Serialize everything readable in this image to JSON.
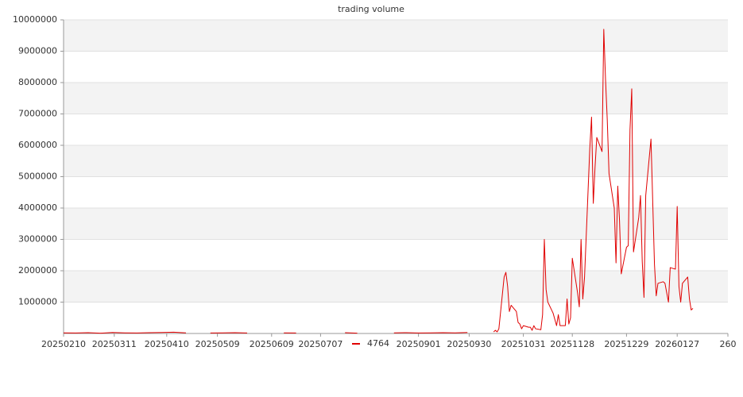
{
  "chart_data": {
    "type": "line",
    "title": "trading volume",
    "x": [
      "20250210",
      "20250217",
      "20250224",
      "20250303",
      "20250310",
      "20250317",
      "20250324",
      "20250331",
      "20250407",
      "20250414",
      "20250421",
      "20250428",
      "20250505",
      "20250512",
      "20250519",
      "20250526",
      "20250602",
      "20250609",
      "20250616",
      "20250623",
      "20250630",
      "20250707",
      "20250714",
      "20250721",
      "20250728",
      "20250804",
      "20250811",
      "20250818",
      "20250825",
      "20250901",
      "20250908",
      "20250915",
      "20250922",
      "20250929",
      "20251006",
      "20251014",
      "20251015",
      "20251016",
      "20251017",
      "20251020",
      "20251021",
      "20251022",
      "20251023",
      "20251024",
      "20251027",
      "20251028",
      "20251029",
      "20251030",
      "20251031",
      "20251103",
      "20251104",
      "20251105",
      "20251106",
      "20251107",
      "20251110",
      "20251111",
      "20251112",
      "20251113",
      "20251114",
      "20251117",
      "20251118",
      "20251119",
      "20251120",
      "20251121",
      "20251124",
      "20251125",
      "20251126",
      "20251127",
      "20251128",
      "20251201",
      "20251202",
      "20251203",
      "20251204",
      "20251205",
      "20251208",
      "20251209",
      "20251210",
      "20251211",
      "20251212",
      "20251215",
      "20251216",
      "20251217",
      "20251218",
      "20251219",
      "20251222",
      "20251223",
      "20251224",
      "20251225",
      "20251226",
      "20251229",
      "20251230",
      "20251231",
      "20260101",
      "20260102",
      "20260105",
      "20260106",
      "20260107",
      "20260108",
      "20260109",
      "20260112",
      "20260113",
      "20260114",
      "20260115",
      "20260116",
      "20260119",
      "20260120",
      "20260121",
      "20260122",
      "20260123",
      "20260126",
      "20260127",
      "20260128",
      "20260129",
      "20260130",
      "20260202",
      "20260203",
      "20260204",
      "20260205"
    ],
    "series": [
      {
        "name": "4764",
        "color": "#e00000",
        "values": [
          20000,
          15000,
          25000,
          10000,
          30000,
          20000,
          15000,
          25000,
          30000,
          40000,
          20000,
          null,
          15000,
          20000,
          25000,
          15000,
          null,
          null,
          20000,
          15000,
          null,
          30000,
          null,
          25000,
          10000,
          null,
          null,
          20000,
          25000,
          15000,
          20000,
          25000,
          20000,
          30000,
          null,
          50000,
          100000,
          50000,
          150000,
          1800000,
          1950000,
          1500000,
          700000,
          900000,
          700000,
          350000,
          300000,
          150000,
          250000,
          200000,
          200000,
          100000,
          250000,
          150000,
          120000,
          600000,
          3000000,
          1400000,
          1000000,
          650000,
          450000,
          250000,
          600000,
          250000,
          250000,
          1100000,
          300000,
          500000,
          2400000,
          1300000,
          850000,
          3000000,
          1100000,
          1800000,
          5900000,
          6900000,
          4150000,
          5300000,
          6250000,
          5800000,
          9700000,
          8100000,
          6800000,
          5100000,
          4000000,
          2250000,
          4700000,
          3600000,
          1900000,
          2750000,
          2800000,
          6500000,
          7800000,
          2600000,
          3700000,
          4400000,
          2300000,
          1150000,
          4400000,
          6200000,
          4200000,
          2200000,
          1200000,
          1600000,
          1650000,
          1600000,
          1300000,
          1000000,
          2100000,
          2050000,
          4050000,
          1500000,
          1000000,
          1600000,
          1800000,
          1100000,
          750000,
          800000
        ]
      }
    ],
    "xlim": [
      "20250210",
      "20260225"
    ],
    "xticks": [
      "20250210",
      "20250311",
      "20250410",
      "20250509",
      "20250609",
      "20250707",
      "20250901",
      "20250930",
      "20251031",
      "20251128",
      "20251229",
      "20260127",
      {
        "value": "20260225",
        "label": "260"
      }
    ],
    "ylim": [
      0,
      10000000
    ],
    "yticks": [
      1000000,
      2000000,
      3000000,
      4000000,
      5000000,
      6000000,
      7000000,
      8000000,
      9000000,
      10000000
    ],
    "grid": true,
    "legend_position": "bottom"
  }
}
